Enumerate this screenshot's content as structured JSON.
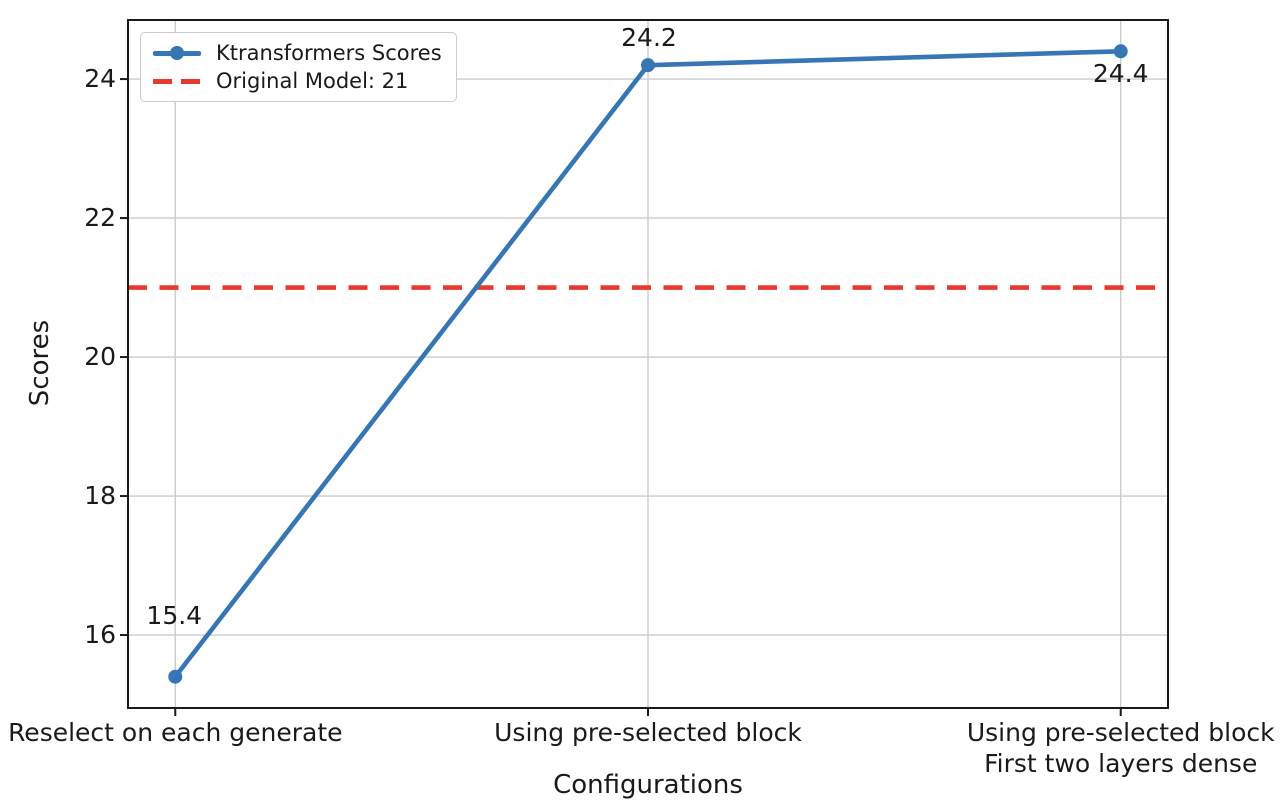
{
  "chart_data": {
    "type": "line",
    "title": "",
    "xlabel": "Configurations",
    "ylabel": "Scores",
    "categories": [
      "Reselect on each generate",
      "Using pre-selected block",
      "Using pre-selected block\nFirst two layers dense"
    ],
    "series": [
      {
        "name": "Ktransformers Scores",
        "type": "line",
        "marker": "circle",
        "line_style": "solid",
        "color": "#3676b5",
        "values": [
          15.4,
          24.2,
          24.4
        ]
      },
      {
        "name": "Original Model: 21",
        "type": "hline",
        "line_style": "dashed",
        "color": "#e8392e",
        "value": 21
      }
    ],
    "data_labels": [
      "15.4",
      "24.2",
      "24.4"
    ],
    "y_ticks": [
      16,
      18,
      20,
      22,
      24
    ],
    "ylim": [
      14.95,
      24.85
    ],
    "grid": true,
    "legend_position": "upper-left",
    "colors": {
      "grid": "#cccccc",
      "spine": "#1a1a1a",
      "text": "#1a1a1a",
      "background": "#ffffff"
    }
  },
  "legend": {
    "items": [
      {
        "label": "Ktransformers Scores",
        "swatch": "line-with-dot-icon"
      },
      {
        "label": "Original Model: 21",
        "swatch": "dashed-line-icon"
      }
    ]
  }
}
